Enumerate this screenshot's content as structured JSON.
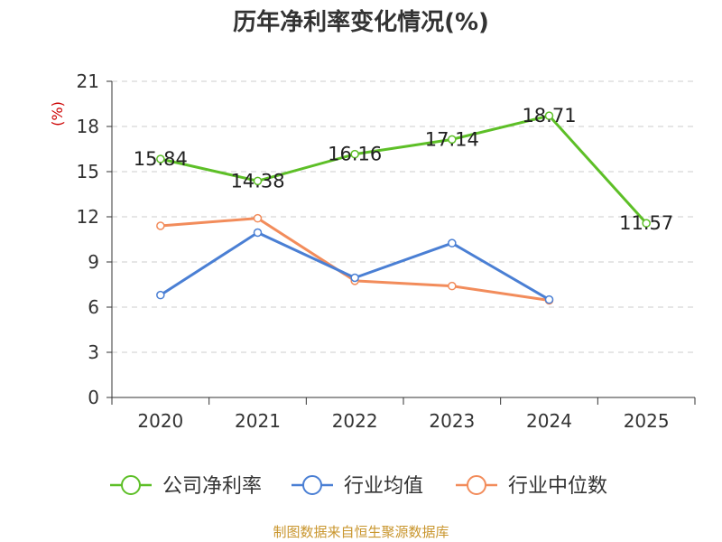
{
  "title": "历年净利率变化情况(%)",
  "footer": "制图数据来自恒生聚源数据库",
  "chart_data": {
    "type": "line",
    "title": "历年净利率变化情况(%)",
    "ylabel": "(%)",
    "xlabel": "",
    "categories": [
      "2020",
      "2021",
      "2022",
      "2023",
      "2024",
      "2025"
    ],
    "ylim": [
      0,
      21
    ],
    "yticks": [
      0,
      3,
      6,
      9,
      12,
      15,
      18,
      21
    ],
    "grid": true,
    "legend_position": "bottom",
    "series": [
      {
        "name": "公司净利率",
        "color": "#5dbf27",
        "values": [
          15.84,
          14.38,
          16.16,
          17.14,
          18.71,
          11.57
        ],
        "labels": [
          "15.84",
          "14.38",
          "16.16",
          "17.14",
          "18.71",
          "11.57"
        ]
      },
      {
        "name": "行业均值",
        "color": "#4a7fd4",
        "values": [
          6.8,
          10.95,
          7.95,
          10.25,
          6.5,
          null
        ]
      },
      {
        "name": "行业中位数",
        "color": "#f28c5b",
        "values": [
          11.4,
          11.9,
          7.75,
          7.4,
          6.45,
          null
        ]
      }
    ]
  },
  "colors": {
    "axis": "#333333",
    "grid": "#cccccc",
    "ylabel": "#cc0000",
    "footer": "#c9962e"
  }
}
